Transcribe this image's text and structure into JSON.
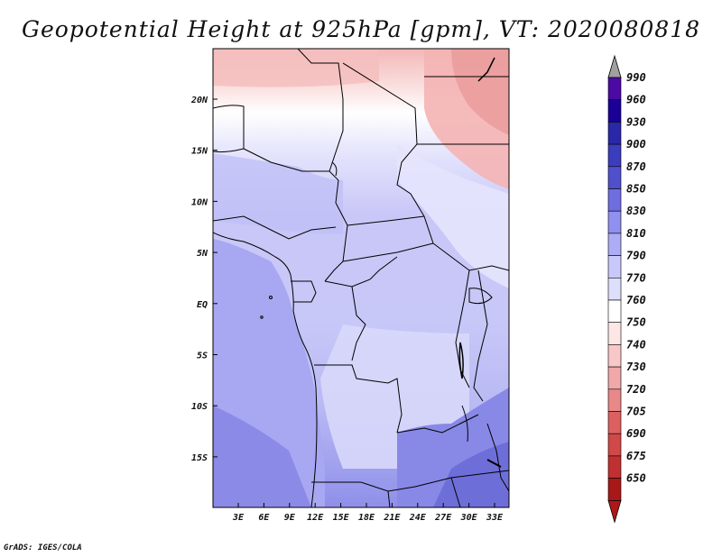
{
  "title": "Geopotential Height at 925hPa [gpm], VT: 2020080818",
  "credit": "GrADS: IGES/COLA",
  "map": {
    "units": "gpm",
    "lat_labels": [
      "20N",
      "15N",
      "10N",
      "5N",
      "EQ",
      "5S",
      "10S",
      "15S"
    ],
    "lon_labels": [
      "3E",
      "6E",
      "9E",
      "12E",
      "15E",
      "18E",
      "21E",
      "24E",
      "27E",
      "30E",
      "33E"
    ]
  },
  "colorbar": {
    "levels": [
      {
        "label": "990",
        "color": "#4b0aa3"
      },
      {
        "label": "960",
        "color": "#1a0096"
      },
      {
        "label": "930",
        "color": "#2828a8"
      },
      {
        "label": "900",
        "color": "#3c3cbe"
      },
      {
        "label": "870",
        "color": "#5050cd"
      },
      {
        "label": "850",
        "color": "#6e6ee0"
      },
      {
        "label": "830",
        "color": "#9090f0"
      },
      {
        "label": "810",
        "color": "#adadf5"
      },
      {
        "label": "790",
        "color": "#c8c8fa"
      },
      {
        "label": "770",
        "color": "#dedefd"
      },
      {
        "label": "760",
        "color": "#ffffff"
      },
      {
        "label": "750",
        "color": "#fde6e6"
      },
      {
        "label": "740",
        "color": "#f8c8c8"
      },
      {
        "label": "730",
        "color": "#f0a8a8"
      },
      {
        "label": "720",
        "color": "#e88888"
      },
      {
        "label": "705",
        "color": "#dd6060"
      },
      {
        "label": "690",
        "color": "#d04848"
      },
      {
        "label": "675",
        "color": "#c03030"
      },
      {
        "label": "650",
        "color": "#a81818"
      }
    ],
    "over_color": "#a0a0a0",
    "under_color": "#b01818"
  }
}
